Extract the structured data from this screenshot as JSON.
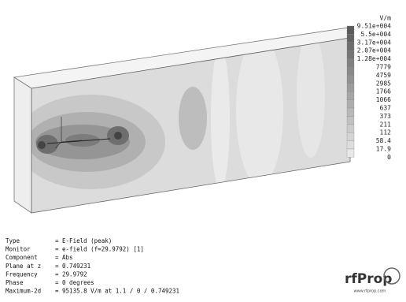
{
  "colorbar": {
    "unit": "V/m",
    "labels": [
      "9.51e+004",
      "5.5e+004",
      "3.17e+004",
      "2.07e+004",
      "1.28e+004",
      "7779",
      "4759",
      "2985",
      "1766",
      "1066",
      "637",
      "373",
      "211",
      "112",
      "58.4",
      "17.9",
      "0"
    ]
  },
  "info": [
    {
      "label": "Type",
      "value": "= E-Field (peak)"
    },
    {
      "label": "Monitor",
      "value": "= e-field (f=29.9792) [1]"
    },
    {
      "label": "Component",
      "value": "= Abs"
    },
    {
      "label": "Plane at z",
      "value": "= 0.749231"
    },
    {
      "label": "Frequency",
      "value": "= 29.9792"
    },
    {
      "label": "Phase",
      "value": "= 0 degrees"
    },
    {
      "label": "Maximum-2d",
      "value": "= 95135.8 V/m at 1.1 / 0 / 0.749231"
    }
  ],
  "logo": {
    "name": "rfProp",
    "url": "www.rfprop.com"
  }
}
